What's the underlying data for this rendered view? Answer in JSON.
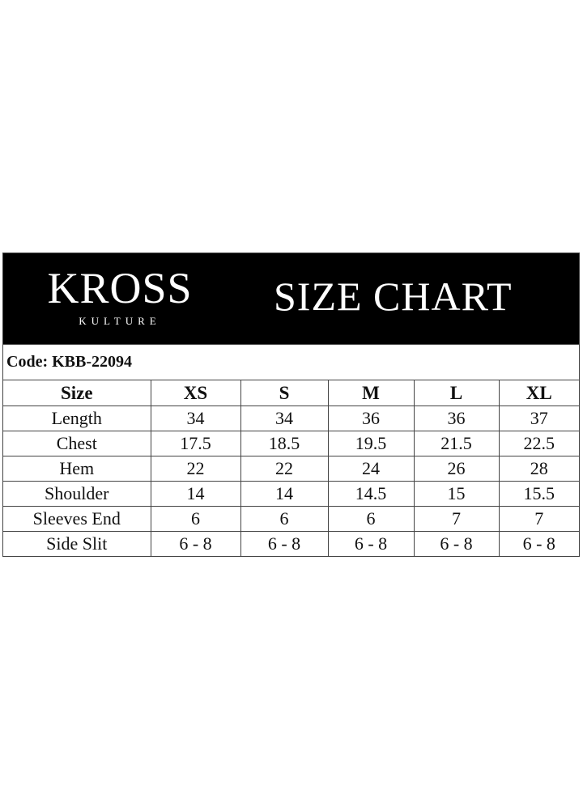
{
  "brand": {
    "logo_main": "KROSS",
    "logo_sub": "KULTURE"
  },
  "title": "SIZE CHART",
  "code": "Code: KBB-22094",
  "table": {
    "headers": [
      "Size",
      "XS",
      "S",
      "M",
      "L",
      "XL"
    ],
    "rows": [
      [
        "Length",
        "34",
        "34",
        "36",
        "36",
        "37"
      ],
      [
        "Chest",
        "17.5",
        "18.5",
        "19.5",
        "21.5",
        "22.5"
      ],
      [
        "Hem",
        "22",
        "22",
        "24",
        "26",
        "28"
      ],
      [
        "Shoulder",
        "14",
        "14",
        "14.5",
        "15",
        "15.5"
      ],
      [
        "Sleeves End",
        "6",
        "6",
        "6",
        "7",
        "7"
      ],
      [
        "Side Slit",
        "6 - 8",
        "6 - 8",
        "6 - 8",
        "6 - 8",
        "6 - 8"
      ]
    ]
  }
}
